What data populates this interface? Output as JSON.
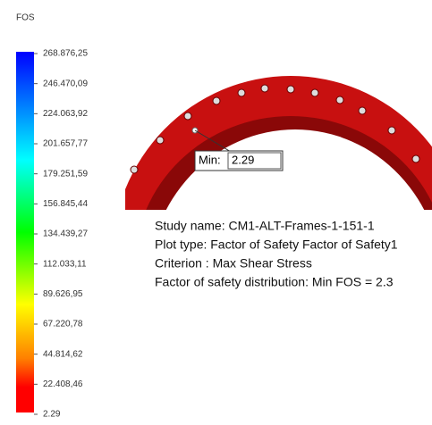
{
  "legend": {
    "title": "FOS",
    "labels": [
      "268.876,25",
      "246.470,09",
      "224.063,92",
      "201.657,77",
      "179.251,59",
      "156.845,44",
      "134.439,27",
      "112.033,11",
      "89.626,95",
      "67.220,78",
      "44.814,62",
      "22.408,46",
      "2.29"
    ]
  },
  "probe": {
    "label": "Min:",
    "value": "2.29"
  },
  "info": [
    "Study name: CM1-ALT-Frames-1-151-1",
    "Plot type: Factor of Safety Factor of Safety1",
    "Criterion : Max Shear Stress",
    "Factor of safety distribution: Min FOS = 2.3"
  ]
}
